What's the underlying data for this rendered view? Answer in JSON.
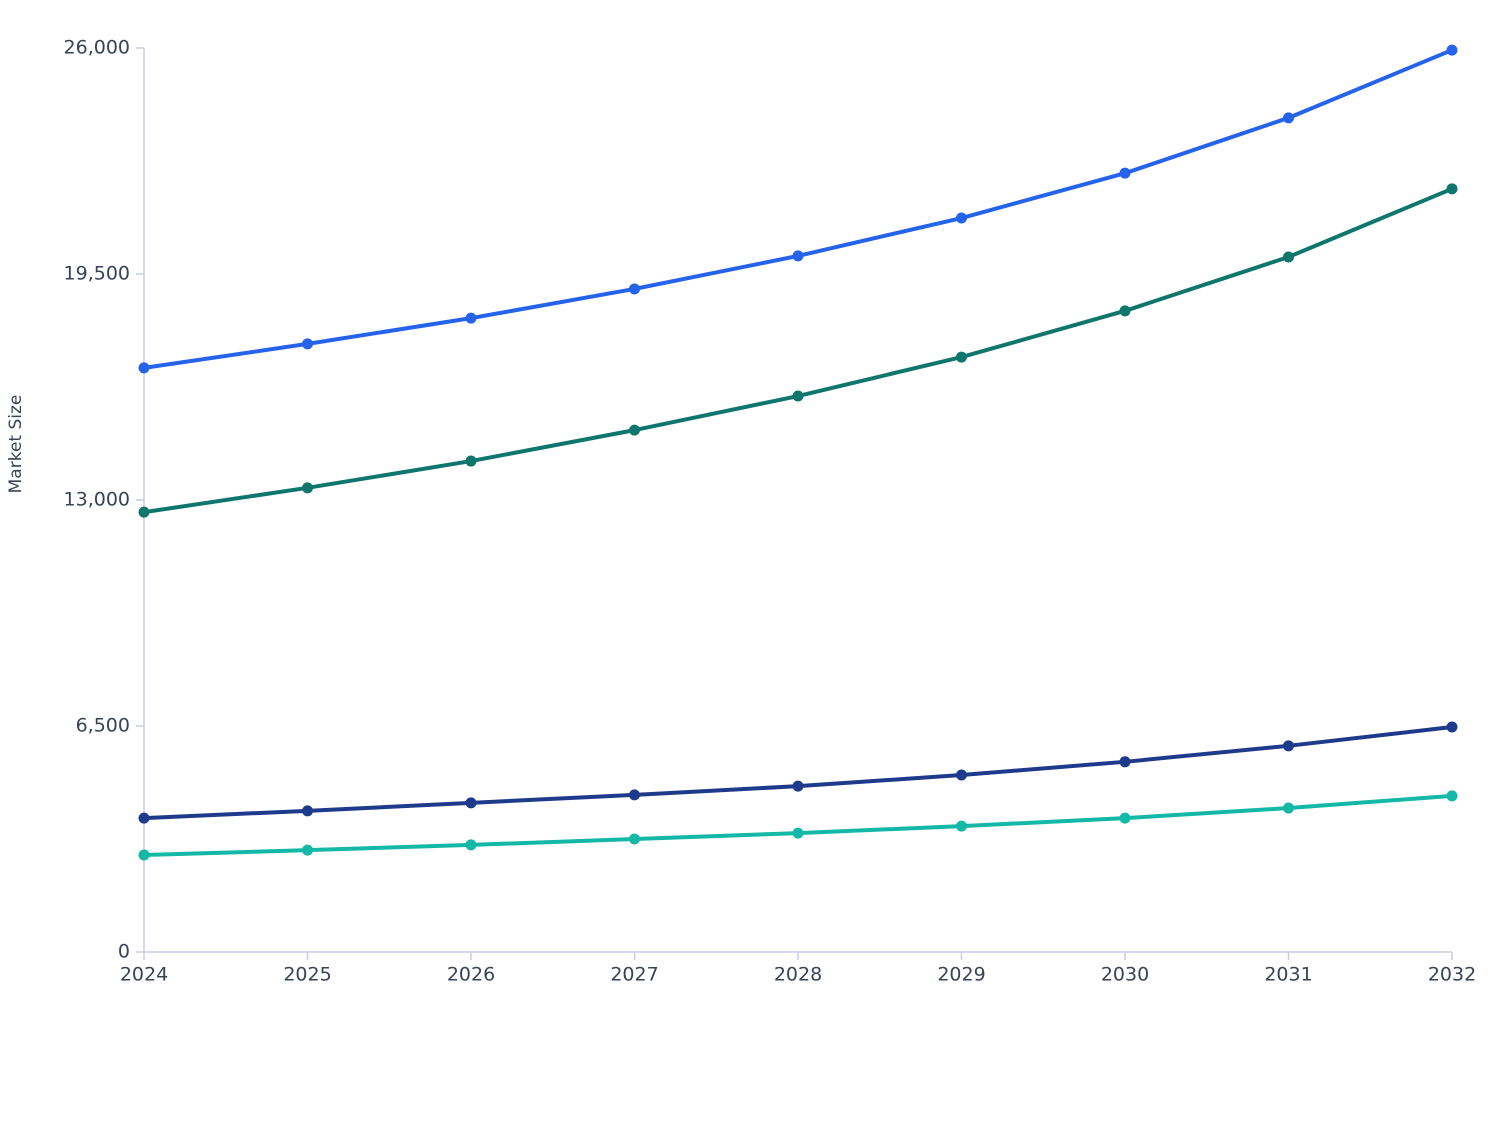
{
  "chart_data": {
    "type": "line",
    "y_label": "Market Size",
    "categories": [
      "2024",
      "2025",
      "2026",
      "2027",
      "2028",
      "2029",
      "2030",
      "2031",
      "2032"
    ],
    "series": [
      {
        "color": "#2563eb",
        "values": [
          16800,
          17490,
          18230,
          19070,
          20020,
          21110,
          22400,
          23990,
          25940
        ]
      },
      {
        "color": "#0f766e",
        "values": [
          12650,
          13350,
          14120,
          15010,
          15990,
          17110,
          18440,
          19990,
          21950
        ]
      },
      {
        "color": "#1e3a8a",
        "values": [
          3850,
          4060,
          4290,
          4520,
          4770,
          5090,
          5470,
          5930,
          6470
        ]
      },
      {
        "color": "#14b8a6",
        "values": [
          2790,
          2930,
          3080,
          3250,
          3420,
          3620,
          3850,
          4140,
          4490
        ]
      }
    ],
    "ylim": [
      0,
      26000
    ],
    "yticks": [
      0,
      {
        "value": 6500,
        "label": "6,500"
      },
      {
        "value": 13000,
        "label": "13,000"
      },
      {
        "value": 19500,
        "label": "19,500"
      },
      {
        "value": 26000,
        "label": "26,000"
      }
    ]
  }
}
